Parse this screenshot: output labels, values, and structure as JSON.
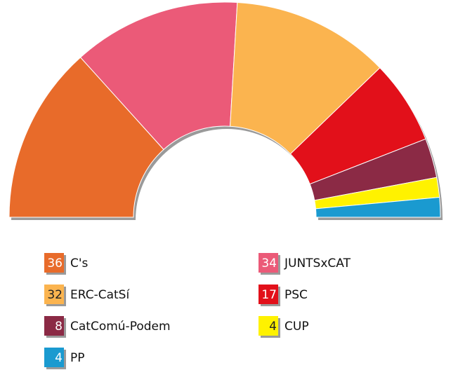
{
  "chart_data": {
    "type": "half-donut",
    "categories": [
      "C's",
      "JUNTSxCAT",
      "ERC-CatSí",
      "PSC",
      "CatComú-Podem",
      "CUP",
      "PP"
    ],
    "values": [
      36,
      34,
      32,
      17,
      8,
      4,
      4
    ],
    "colors": [
      "#e86b2a",
      "#eb5a78",
      "#fbb44f",
      "#e2101a",
      "#8b2a45",
      "#fff200",
      "#1a9ad0"
    ]
  }
}
